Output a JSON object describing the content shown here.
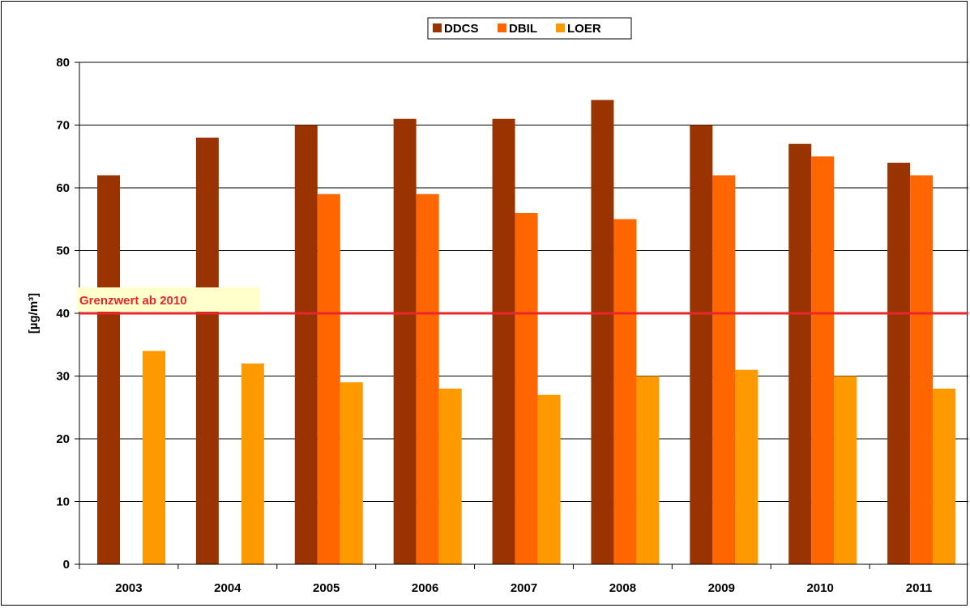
{
  "chart_data": {
    "type": "bar",
    "title": "",
    "xlabel": "",
    "ylabel": "[µg/m³]",
    "categories": [
      "2003",
      "2004",
      "2005",
      "2006",
      "2007",
      "2008",
      "2009",
      "2010",
      "2011"
    ],
    "series": [
      {
        "name": "DDCS",
        "color": "#993300",
        "values": [
          62,
          68,
          70,
          71,
          71,
          74,
          70,
          67,
          64
        ]
      },
      {
        "name": "DBIL",
        "color": "#ff6600",
        "values": [
          null,
          null,
          59,
          59,
          56,
          55,
          62,
          65,
          62
        ]
      },
      {
        "name": "LOER",
        "color": "#ff9900",
        "values": [
          34,
          32,
          29,
          28,
          27,
          30,
          31,
          30,
          28
        ]
      }
    ],
    "ylim": [
      0,
      80
    ],
    "yticks": [
      0,
      10,
      20,
      30,
      40,
      50,
      60,
      70,
      80
    ],
    "grid": true,
    "legend_position": "top-center",
    "reference_line": {
      "value": 40,
      "label": "Grenzwert ab 2010",
      "color": "#e8262b",
      "label_background": "#ffffcc"
    }
  }
}
